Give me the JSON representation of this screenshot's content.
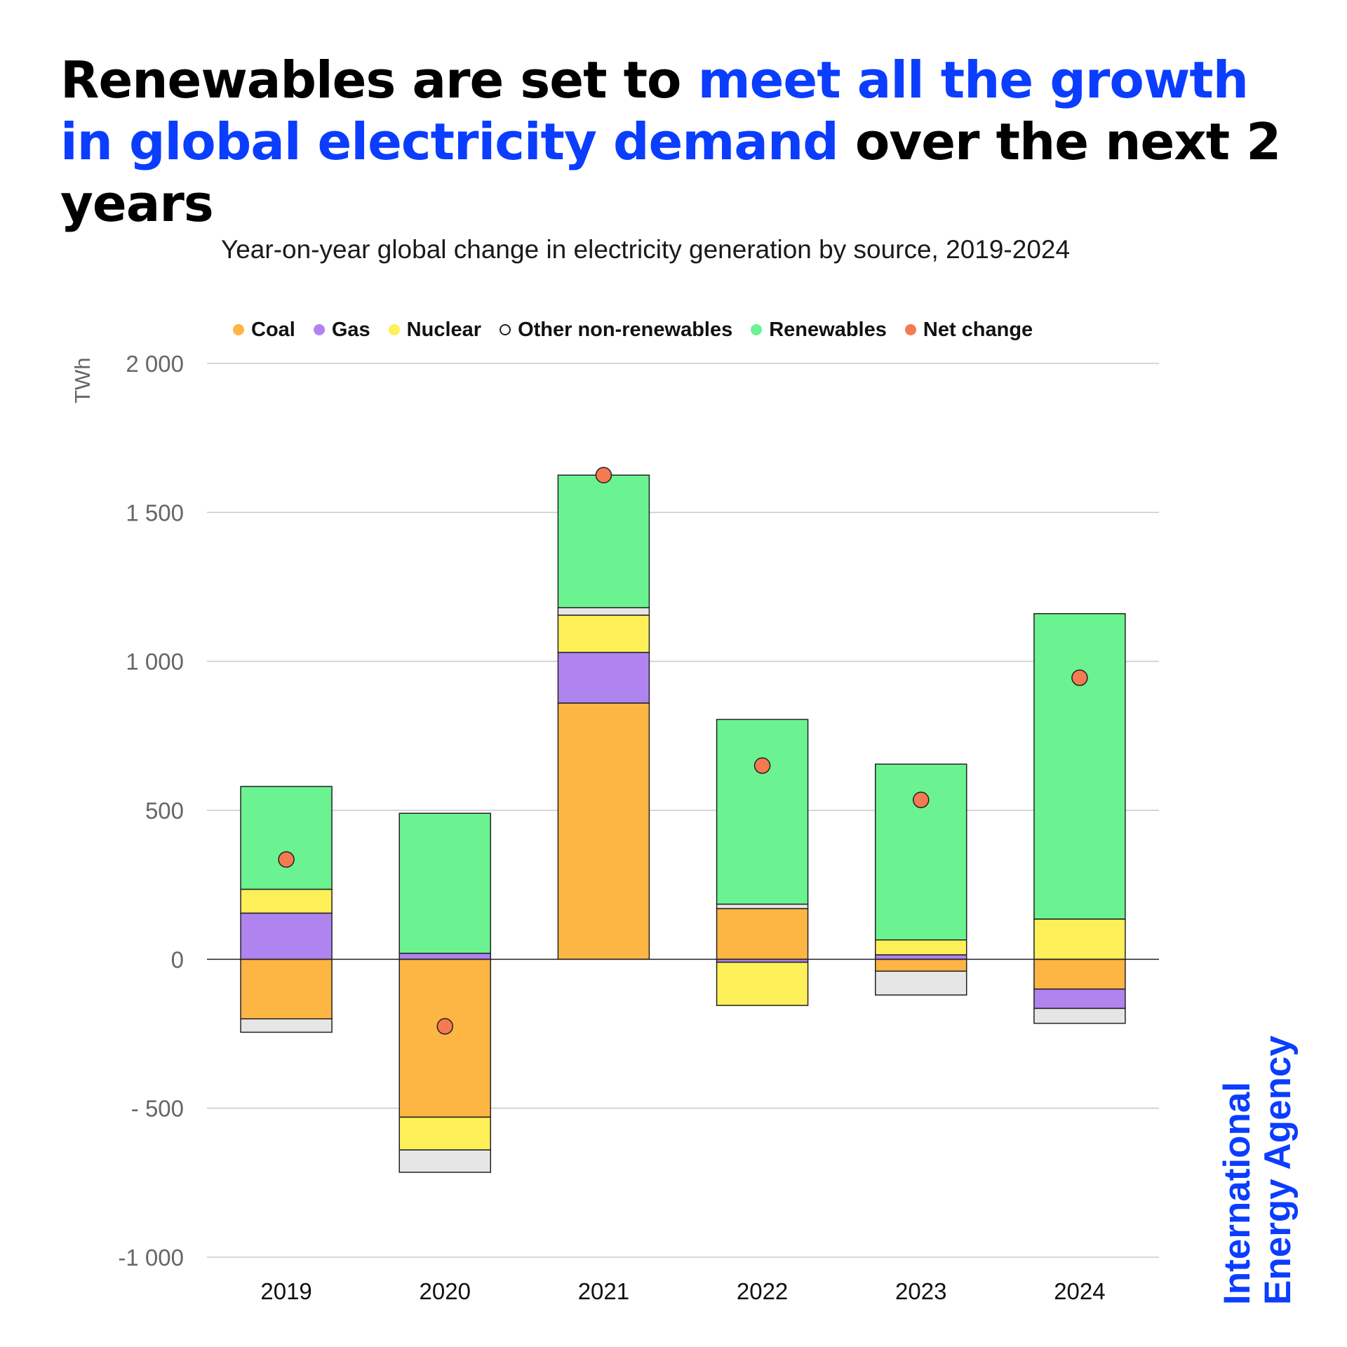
{
  "headline": {
    "part1": "Renewables are set to ",
    "part2": "meet all the growth in global electricity demand",
    "part3": " over the next 2 years"
  },
  "subtitle": "Year-on-year global change in electricity generation by source, 2019-2024",
  "legend": [
    {
      "label": "Coal",
      "color": "#fdb544"
    },
    {
      "label": "Gas",
      "color": "#b084ef"
    },
    {
      "label": "Nuclear",
      "color": "#fdf058"
    },
    {
      "label": "Other non-renewables",
      "color": "#e6e6e6"
    },
    {
      "label": "Renewables",
      "color": "#6af390"
    },
    {
      "label": "Net change",
      "color": "#f47a52"
    }
  ],
  "axis_unit": "TWh",
  "logo": {
    "line1": "International",
    "line2": "Energy Agency"
  },
  "chart_data": {
    "type": "bar",
    "stacked": true,
    "title": "Year-on-year global change in electricity generation by source, 2019-2024",
    "ylabel": "TWh",
    "ylim": [
      -1000,
      2000
    ],
    "yticks": [
      2000,
      1500,
      1000,
      500,
      0,
      -500,
      -1000
    ],
    "ytick_labels": [
      "2 000",
      "1 500",
      "1 000",
      "500",
      "0",
      "- 500",
      "-1 000"
    ],
    "categories": [
      "2019",
      "2020",
      "2021",
      "2022",
      "2023",
      "2024"
    ],
    "series": [
      {
        "name": "Coal",
        "color": "#fdb544",
        "values": [
          -200,
          -530,
          860,
          170,
          -40,
          -100
        ]
      },
      {
        "name": "Gas",
        "color": "#b084ef",
        "values": [
          155,
          20,
          170,
          -10,
          15,
          -65
        ]
      },
      {
        "name": "Nuclear",
        "color": "#fdf058",
        "values": [
          80,
          -110,
          125,
          -145,
          50,
          135
        ]
      },
      {
        "name": "Other non-renewables",
        "color": "#e6e6e6",
        "values": [
          -45,
          -75,
          25,
          15,
          -80,
          -50
        ]
      },
      {
        "name": "Renewables",
        "color": "#6af390",
        "values": [
          345,
          470,
          445,
          620,
          590,
          1025
        ]
      }
    ],
    "net_change": {
      "name": "Net change",
      "color": "#f47a52",
      "values": [
        335,
        -225,
        1625,
        650,
        535,
        945
      ]
    }
  }
}
